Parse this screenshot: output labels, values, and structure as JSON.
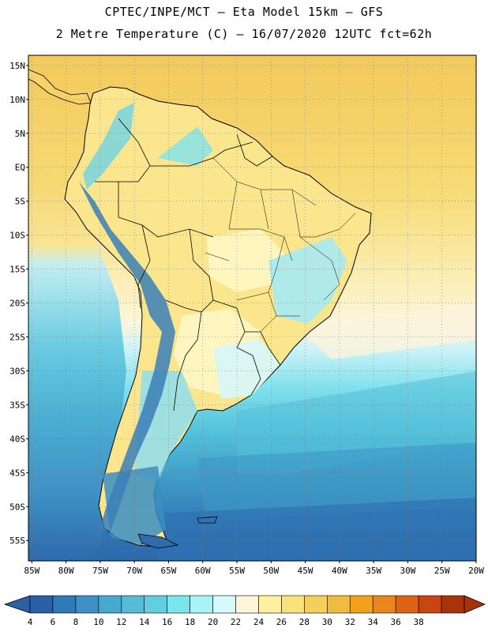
{
  "header": {
    "line1": "CPTEC/INPE/MCT –  Eta Model 15km – GFS",
    "line2": "2 Metre Temperature (C) – 16/07/2020 12UTC fct=62h"
  },
  "axes": {
    "lat_labels": [
      "15N",
      "10N",
      "5N",
      "EQ",
      "5S",
      "10S",
      "15S",
      "20S",
      "25S",
      "30S",
      "35S",
      "40S",
      "45S",
      "50S",
      "55S"
    ],
    "lat_values": [
      15,
      10,
      5,
      0,
      -5,
      -10,
      -15,
      -20,
      -25,
      -30,
      -35,
      -40,
      -45,
      -50,
      -55
    ],
    "lon_labels": [
      "85W",
      "80W",
      "75W",
      "70W",
      "65W",
      "60W",
      "55W",
      "50W",
      "45W",
      "40W",
      "35W",
      "30W",
      "25W",
      "20W"
    ],
    "lon_values": [
      -85,
      -80,
      -75,
      -70,
      -65,
      -60,
      -55,
      -50,
      -45,
      -40,
      -35,
      -30,
      -25,
      -20
    ],
    "lat_range": [
      -58,
      16.5
    ],
    "lon_range": [
      -85.5,
      -20
    ]
  },
  "colorbar": {
    "labels": [
      "4",
      "6",
      "8",
      "10",
      "12",
      "14",
      "16",
      "18",
      "20",
      "22",
      "24",
      "26",
      "28",
      "30",
      "32",
      "34",
      "36",
      "38"
    ],
    "colors": [
      "#2b5fa6",
      "#3179b8",
      "#3d91c4",
      "#49a8cf",
      "#55bcd6",
      "#62cfdf",
      "#79e6ec",
      "#a7f4f6",
      "#d6f9fb",
      "#fdf6dc",
      "#fff1a0",
      "#f9e27a",
      "#f4cf5a",
      "#efbc3f",
      "#f0a21a",
      "#e8871e",
      "#dc6414",
      "#c84410",
      "#a8330a"
    ],
    "left_arrow_color": "#2b5fa6",
    "right_arrow_color": "#a8330a"
  },
  "colors": {
    "ocean_north": "#f4cc5e",
    "ocean_north_mid": "#f7db74",
    "ocean_mid": "#fdf4d8",
    "ocean_cool": "#bff0f7",
    "ocean_cyan": "#5dcde0",
    "ocean_blue": "#3f9bc8",
    "ocean_deep": "#2e6fb0",
    "land_warm": "#fbe68e",
    "land_pale": "#fff6c4",
    "andes_cold": "#3a8ec3",
    "border": "#000000"
  }
}
